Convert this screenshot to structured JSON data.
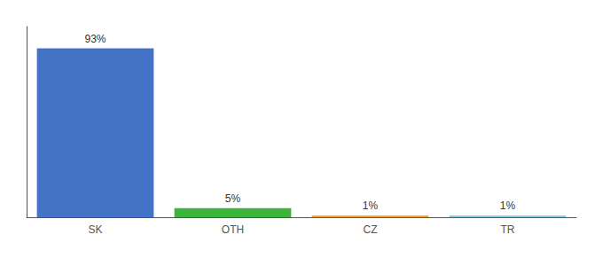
{
  "chart_data": {
    "type": "bar",
    "categories": [
      "SK",
      "OTH",
      "CZ",
      "TR"
    ],
    "values": [
      93,
      5,
      1,
      1
    ],
    "value_labels": [
      "93%",
      "5%",
      "1%",
      "1%"
    ],
    "colors": [
      "#4472c4",
      "#3cb53c",
      "#f5a623",
      "#87ceeb"
    ],
    "ylim": [
      0,
      105
    ],
    "grid": false,
    "data_labels": true,
    "tick_labels": "x"
  }
}
